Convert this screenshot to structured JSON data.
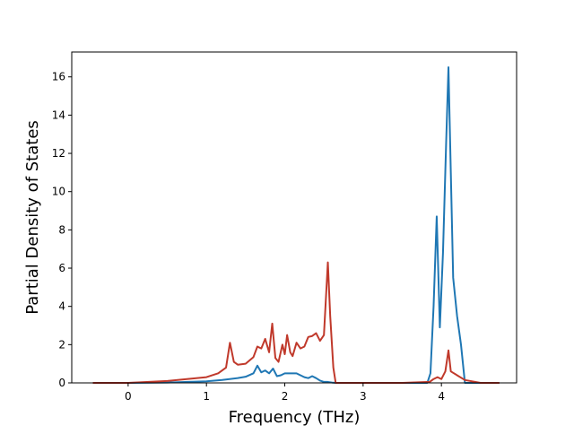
{
  "chart_data": {
    "type": "line",
    "title": "",
    "xlabel": "Frequency (THz)",
    "ylabel": "Partial Density of States",
    "xlim": [
      -0.72,
      4.96
    ],
    "ylim": [
      0,
      17.3
    ],
    "xticks": [
      0,
      1,
      2,
      3,
      4
    ],
    "yticks": [
      0,
      2,
      4,
      6,
      8,
      10,
      12,
      14,
      16
    ],
    "grid": false,
    "legend": "none",
    "colors": {
      "blue": "#1f77b4",
      "red": "#c0392b"
    },
    "series": [
      {
        "color": "#1f77b4",
        "x": [
          -0.45,
          0.0,
          0.5,
          1.0,
          1.2,
          1.4,
          1.5,
          1.6,
          1.65,
          1.7,
          1.75,
          1.8,
          1.85,
          1.9,
          1.95,
          2.0,
          2.05,
          2.1,
          2.15,
          2.2,
          2.25,
          2.3,
          2.35,
          2.4,
          2.45,
          2.5,
          2.55,
          2.6,
          2.65,
          3.0,
          3.5,
          3.82,
          3.86,
          3.9,
          3.94,
          3.98,
          4.02,
          4.06,
          4.09,
          4.12,
          4.15,
          4.2,
          4.25,
          4.3,
          4.5,
          4.74
        ],
        "y": [
          0,
          0,
          0.02,
          0.08,
          0.15,
          0.25,
          0.32,
          0.5,
          0.9,
          0.55,
          0.65,
          0.5,
          0.75,
          0.35,
          0.4,
          0.5,
          0.5,
          0.5,
          0.5,
          0.4,
          0.3,
          0.25,
          0.35,
          0.25,
          0.12,
          0.05,
          0.05,
          0.02,
          0.0,
          0.0,
          0.0,
          0.0,
          0.5,
          4.0,
          8.7,
          2.9,
          6.8,
          12.5,
          16.5,
          11.0,
          5.5,
          3.5,
          2.0,
          0.0,
          0.0,
          0.0
        ]
      },
      {
        "color": "#c0392b",
        "x": [
          -0.45,
          0.0,
          0.5,
          1.0,
          1.15,
          1.25,
          1.3,
          1.35,
          1.4,
          1.5,
          1.6,
          1.65,
          1.7,
          1.75,
          1.8,
          1.84,
          1.88,
          1.92,
          1.97,
          2.0,
          2.03,
          2.07,
          2.1,
          2.15,
          2.2,
          2.25,
          2.3,
          2.35,
          2.4,
          2.45,
          2.5,
          2.55,
          2.58,
          2.62,
          2.65,
          3.0,
          3.5,
          3.85,
          3.9,
          3.95,
          4.0,
          4.05,
          4.09,
          4.12,
          4.2,
          4.3,
          4.5,
          4.74
        ],
        "y": [
          0,
          0,
          0.1,
          0.3,
          0.5,
          0.8,
          2.1,
          1.1,
          0.95,
          1.0,
          1.35,
          1.9,
          1.8,
          2.3,
          1.6,
          3.1,
          1.3,
          1.1,
          2.0,
          1.5,
          2.5,
          1.6,
          1.4,
          2.1,
          1.8,
          1.9,
          2.4,
          2.45,
          2.6,
          2.2,
          2.5,
          6.3,
          3.5,
          0.8,
          0.0,
          0.0,
          0.0,
          0.05,
          0.2,
          0.3,
          0.2,
          0.6,
          1.7,
          0.6,
          0.4,
          0.15,
          0.0,
          0.0
        ]
      }
    ]
  }
}
